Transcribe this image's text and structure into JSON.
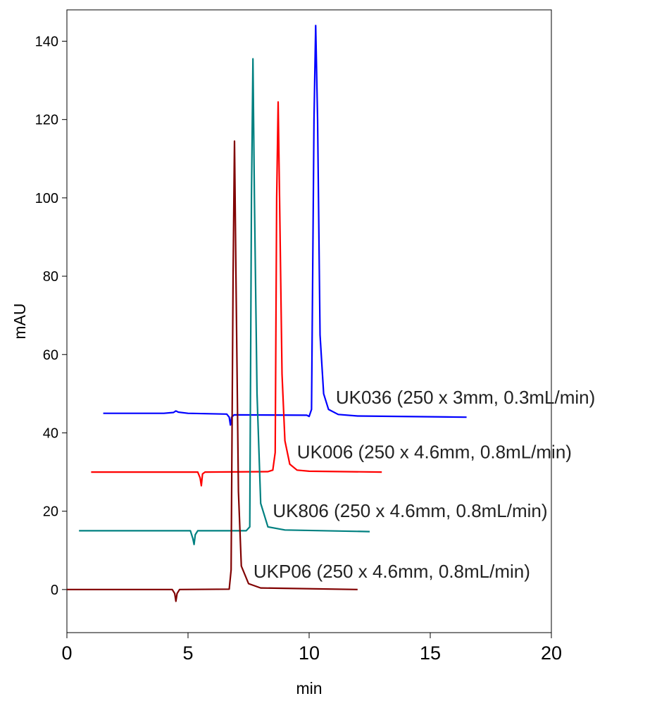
{
  "chart_data": {
    "type": "line",
    "xlabel": "min",
    "ylabel": "mAU",
    "xlim": [
      0,
      20
    ],
    "ylim": [
      -11,
      148
    ],
    "x_ticks": [
      0,
      5,
      10,
      15,
      20
    ],
    "y_ticks": [
      0,
      20,
      40,
      60,
      80,
      100,
      120,
      140
    ],
    "grid": false,
    "series": [
      {
        "name": "UK036 (250 x 3mm, 0.3mL/min)",
        "color": "#0000ff",
        "points": [
          [
            1.5,
            45.0
          ],
          [
            4.0,
            45.0
          ],
          [
            4.4,
            45.2
          ],
          [
            4.5,
            45.6
          ],
          [
            4.6,
            45.3
          ],
          [
            5.0,
            45.0
          ],
          [
            6.6,
            44.8
          ],
          [
            6.7,
            44.0
          ],
          [
            6.75,
            42.0
          ],
          [
            6.8,
            44.0
          ],
          [
            6.9,
            44.6
          ],
          [
            9.9,
            44.5
          ],
          [
            10.0,
            44.2
          ],
          [
            10.1,
            46.0
          ],
          [
            10.2,
            120.0
          ],
          [
            10.27,
            144.0
          ],
          [
            10.35,
            120.0
          ],
          [
            10.45,
            65.0
          ],
          [
            10.6,
            50.0
          ],
          [
            10.8,
            46.0
          ],
          [
            11.2,
            44.7
          ],
          [
            12.0,
            44.3
          ],
          [
            16.5,
            44.0
          ]
        ],
        "label_at": [
          11.1,
          47.5
        ]
      },
      {
        "name": "UK006 (250 x 4.6mm, 0.8mL/min)",
        "color": "#ff0000",
        "points": [
          [
            1.0,
            30.0
          ],
          [
            5.4,
            30.0
          ],
          [
            5.5,
            28.5
          ],
          [
            5.55,
            26.5
          ],
          [
            5.6,
            29.5
          ],
          [
            5.7,
            30.0
          ],
          [
            8.3,
            30.1
          ],
          [
            8.5,
            30.5
          ],
          [
            8.6,
            35.0
          ],
          [
            8.66,
            100.0
          ],
          [
            8.72,
            124.5
          ],
          [
            8.78,
            100.0
          ],
          [
            8.88,
            55.0
          ],
          [
            9.0,
            38.0
          ],
          [
            9.2,
            32.0
          ],
          [
            9.5,
            30.5
          ],
          [
            10.0,
            30.2
          ],
          [
            13.0,
            30.0
          ]
        ],
        "label_at": [
          9.5,
          33.5
        ]
      },
      {
        "name": "UK806 (250 x 4.6mm, 0.8mL/min)",
        "color": "#008080",
        "points": [
          [
            0.5,
            15.0
          ],
          [
            5.1,
            15.0
          ],
          [
            5.2,
            13.0
          ],
          [
            5.25,
            11.5
          ],
          [
            5.3,
            14.0
          ],
          [
            5.4,
            15.0
          ],
          [
            7.4,
            15.0
          ],
          [
            7.55,
            16.0
          ],
          [
            7.62,
            100.0
          ],
          [
            7.68,
            135.5
          ],
          [
            7.74,
            100.0
          ],
          [
            7.85,
            50.0
          ],
          [
            8.0,
            22.0
          ],
          [
            8.3,
            16.0
          ],
          [
            9.0,
            15.2
          ],
          [
            12.5,
            14.8
          ]
        ],
        "label_at": [
          8.5,
          18.5
        ]
      },
      {
        "name": "UKP06 (250 x 4.6mm, 0.8mL/min)",
        "color": "#800000",
        "points": [
          [
            0.0,
            0.0
          ],
          [
            4.35,
            0.0
          ],
          [
            4.45,
            -1.0
          ],
          [
            4.5,
            -3.0
          ],
          [
            4.55,
            -1.0
          ],
          [
            4.65,
            0.0
          ],
          [
            6.7,
            0.1
          ],
          [
            6.78,
            5.0
          ],
          [
            6.86,
            80.0
          ],
          [
            6.92,
            114.5
          ],
          [
            6.98,
            80.0
          ],
          [
            7.08,
            25.0
          ],
          [
            7.2,
            6.0
          ],
          [
            7.5,
            1.5
          ],
          [
            8.0,
            0.4
          ],
          [
            12.0,
            0.0
          ]
        ],
        "label_at": [
          7.7,
          3.0
        ]
      }
    ]
  }
}
